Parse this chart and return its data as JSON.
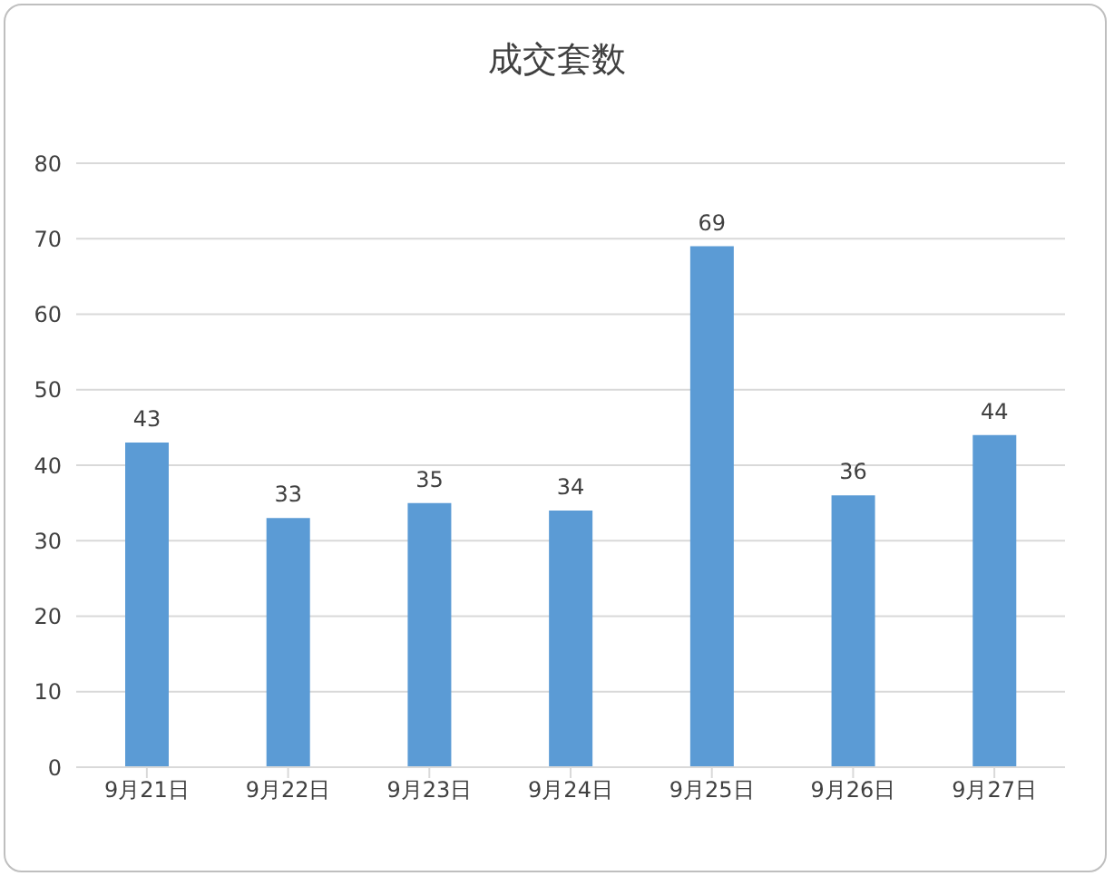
{
  "chart_data": {
    "type": "bar",
    "title": "成交套数",
    "categories": [
      "9月21日",
      "9月22日",
      "9月23日",
      "9月24日",
      "9月25日",
      "9月26日",
      "9月27日"
    ],
    "values": [
      43,
      33,
      35,
      34,
      69,
      36,
      44
    ],
    "color": "#5b9bd5",
    "ylim": [
      0,
      80
    ],
    "yticks": [
      0,
      10,
      20,
      30,
      40,
      50,
      60,
      70,
      80
    ],
    "grid": "y",
    "data_labels": true
  }
}
